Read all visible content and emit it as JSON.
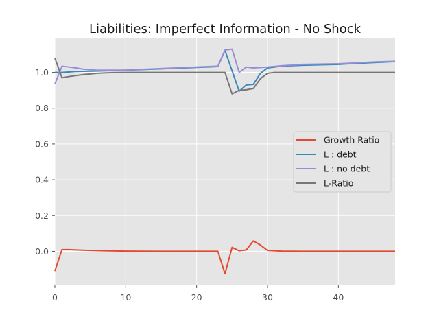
{
  "chart_data": {
    "type": "line",
    "title": "Liabilities: Imperfect Information - No Shock",
    "xlabel": "",
    "ylabel": "",
    "xlim": [
      0,
      48
    ],
    "ylim": [
      -0.19,
      1.19
    ],
    "xticks": [
      0,
      10,
      20,
      30,
      40
    ],
    "yticks": [
      0.0,
      0.2,
      0.4,
      0.6,
      0.8,
      1.0
    ],
    "xtick_labels": [
      "0",
      "10",
      "20",
      "30",
      "40"
    ],
    "ytick_labels": [
      "0.0",
      "0.2",
      "0.4",
      "0.6",
      "0.8",
      "1.0"
    ],
    "grid": true,
    "legend_position": "center-right",
    "background": "#e5e5e5",
    "series": [
      {
        "name": "Growth Ratio",
        "color": "#e24a33",
        "points": [
          [
            0,
            -0.11
          ],
          [
            1,
            0.01
          ],
          [
            2,
            0.01
          ],
          [
            3,
            0.008
          ],
          [
            5,
            0.005
          ],
          [
            7,
            0.003
          ],
          [
            10,
            0.001
          ],
          [
            15,
            0.0
          ],
          [
            20,
            0.0
          ],
          [
            23,
            0.0
          ],
          [
            24,
            -0.125
          ],
          [
            25,
            0.022
          ],
          [
            26,
            0.003
          ],
          [
            27,
            0.008
          ],
          [
            28,
            0.058
          ],
          [
            29,
            0.035
          ],
          [
            30,
            0.005
          ],
          [
            32,
            0.001
          ],
          [
            35,
            0.0
          ],
          [
            40,
            0.0
          ],
          [
            48,
            0.0
          ]
        ]
      },
      {
        "name": "L : debt",
        "color": "#348abd",
        "points": [
          [
            0,
            1.0
          ],
          [
            1,
            1.0
          ],
          [
            3,
            1.005
          ],
          [
            6,
            1.008
          ],
          [
            10,
            1.012
          ],
          [
            15,
            1.02
          ],
          [
            20,
            1.028
          ],
          [
            23,
            1.033
          ],
          [
            24,
            1.123
          ],
          [
            26,
            0.895
          ],
          [
            27,
            0.93
          ],
          [
            28,
            0.933
          ],
          [
            29,
            0.995
          ],
          [
            30,
            1.025
          ],
          [
            32,
            1.035
          ],
          [
            35,
            1.04
          ],
          [
            40,
            1.045
          ],
          [
            45,
            1.055
          ],
          [
            48,
            1.06
          ]
        ]
      },
      {
        "name": "L : no debt",
        "color": "#988ed5",
        "points": [
          [
            0,
            0.935
          ],
          [
            1,
            1.035
          ],
          [
            3,
            1.025
          ],
          [
            4,
            1.018
          ],
          [
            6,
            1.012
          ],
          [
            10,
            1.013
          ],
          [
            15,
            1.022
          ],
          [
            20,
            1.03
          ],
          [
            23,
            1.035
          ],
          [
            24,
            1.125
          ],
          [
            25,
            1.13
          ],
          [
            26,
            1.0
          ],
          [
            27,
            1.03
          ],
          [
            28,
            1.025
          ],
          [
            30,
            1.03
          ],
          [
            32,
            1.037
          ],
          [
            35,
            1.045
          ],
          [
            40,
            1.048
          ],
          [
            45,
            1.058
          ],
          [
            48,
            1.062
          ]
        ]
      },
      {
        "name": "L-Ratio",
        "color": "#777777",
        "points": [
          [
            0,
            1.08
          ],
          [
            1,
            0.97
          ],
          [
            2,
            0.977
          ],
          [
            4,
            0.988
          ],
          [
            6,
            0.995
          ],
          [
            8,
            0.999
          ],
          [
            10,
            1.0
          ],
          [
            15,
            1.0
          ],
          [
            20,
            1.0
          ],
          [
            24,
            1.0
          ],
          [
            25,
            0.88
          ],
          [
            26,
            0.9
          ],
          [
            27,
            0.903
          ],
          [
            28,
            0.91
          ],
          [
            29,
            0.965
          ],
          [
            30,
            0.995
          ],
          [
            31,
            1.0
          ],
          [
            35,
            1.0
          ],
          [
            40,
            1.0
          ],
          [
            48,
            1.0
          ]
        ]
      }
    ]
  }
}
